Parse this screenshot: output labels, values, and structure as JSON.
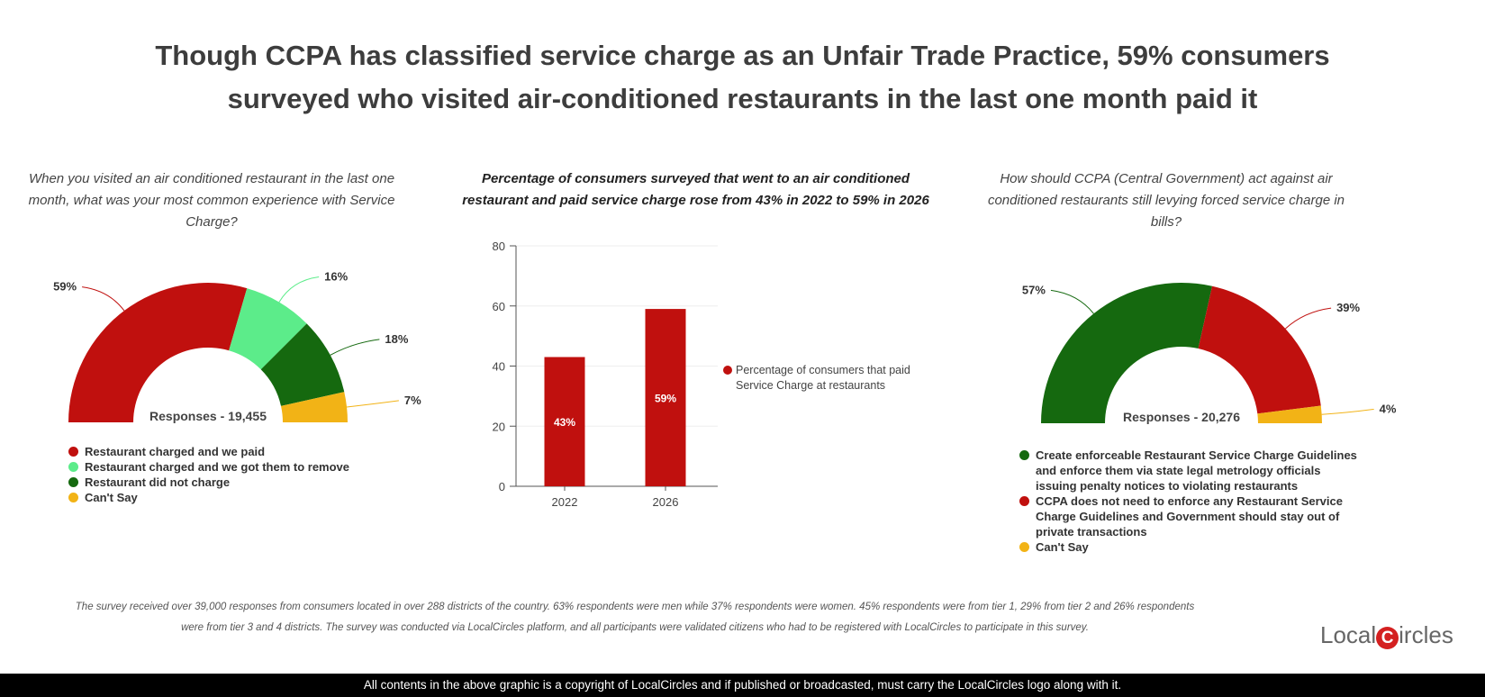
{
  "title_line1": "Though CCPA has classified service charge as an Unfair Trade Practice, 59% consumers",
  "title_line2": "surveyed who visited air-conditioned restaurants in the last one month paid it",
  "chart_data": [
    {
      "type": "pie",
      "variant": "semi-donut",
      "title": "When you visited an air conditioned restaurant in the last one month, what was your most common experience with Service Charge?",
      "center_label": "Responses - 19,455",
      "categories": [
        "Restaurant charged and we paid",
        "Restaurant charged and we got them to remove",
        "Restaurant did not charge",
        "Can't Say"
      ],
      "values": [
        59,
        16,
        18,
        7
      ],
      "labels": [
        "59%",
        "16%",
        "18%",
        "7%"
      ],
      "colors": [
        "#c0100e",
        "#5cec8a",
        "#15690f",
        "#f2b316"
      ],
      "legend_position": "bottom"
    },
    {
      "type": "bar",
      "title": "Percentage of consumers surveyed that went to an air conditioned restaurant and paid service charge rose from 43% in 2022 to 59% in 2026",
      "categories": [
        "2022",
        "2026"
      ],
      "series": [
        {
          "name": "Percentage of consumers that paid Service Charge at restaurants",
          "values": [
            43,
            59
          ],
          "labels": [
            "43%",
            "59%"
          ],
          "color": "#c0100e"
        }
      ],
      "ylim": [
        0,
        80
      ],
      "yticks": [
        "0",
        "20",
        "40",
        "60",
        "80"
      ],
      "grid": true,
      "legend_position": "right"
    },
    {
      "type": "pie",
      "variant": "semi-donut",
      "title": "How should CCPA (Central Government) act against air conditioned restaurants still levying forced service charge in bills?",
      "center_label": "Responses - 20,276",
      "categories": [
        "Create enforceable Restaurant Service Charge Guidelines and enforce them via state legal metrology officials issuing penalty notices to violating restaurants",
        "CCPA does not need to enforce any Restaurant Service Charge Guidelines and Government should stay out of private transactions",
        "Can't Say"
      ],
      "values": [
        57,
        39,
        4
      ],
      "labels": [
        "57%",
        "39%",
        "4%"
      ],
      "colors": [
        "#15690f",
        "#c0100e",
        "#f2b316"
      ],
      "legend_position": "bottom"
    }
  ],
  "footnote_line1": "The survey received over 39,000 responses from consumers located in over 288 districts of the country. 63% respondents were men while 37% respondents were women. 45% respondents were from tier 1, 29% from tier 2 and 26% respondents",
  "footnote_line2": "were from tier 3 and 4 districts. The survey was conducted via LocalCircles platform, and all participants were validated citizens who had to be registered with LocalCircles to participate in this survey.",
  "logo": {
    "text1": "Local",
    "mark": "C",
    "text2": "ircles"
  },
  "copyright": "All contents in the above graphic is a copyright of LocalCircles and if published or broadcasted, must carry the LocalCircles logo along with it."
}
